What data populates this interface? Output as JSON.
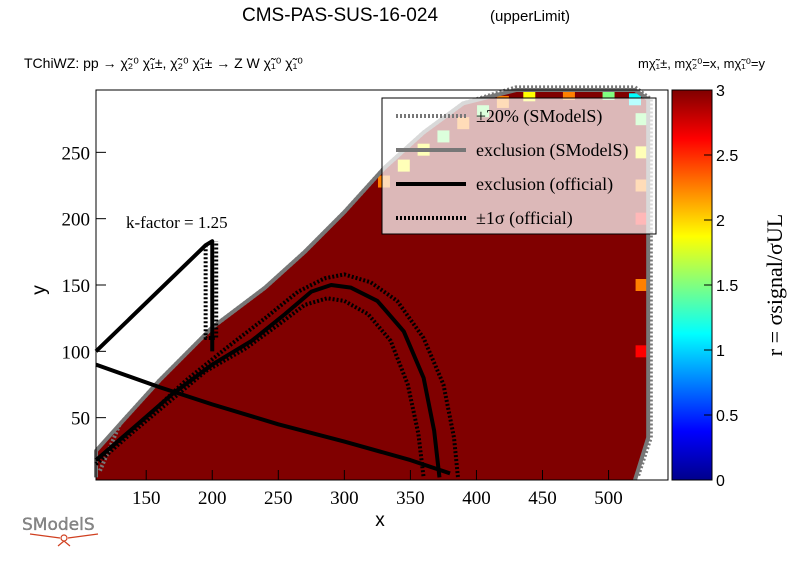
{
  "header": {
    "title": "CMS-PAS-SUS-16-024",
    "subtitle": "(upperLimit)",
    "process": "TChiWZ: pp  → χ̃₂⁰ χ̃₁±, χ̃₂⁰ χ̃₁± → Z W  χ̃₁⁰ χ̃₁⁰",
    "mass_note": "mχ̃₁±, mχ̃₂⁰=x, mχ̃₁⁰=y"
  },
  "annotation": "k-factor = 1.25",
  "logo_text": "SModelS",
  "colors": {
    "fill_dark_red": "#800000",
    "contour_smodels": "#777777",
    "contour_official": "#000000",
    "legend_bg": "#ffffff"
  },
  "chart_data": {
    "type": "heatmap",
    "title": "CMS-PAS-SUS-16-024",
    "xlabel": "x",
    "ylabel": "y",
    "zlabel": "r = σsignal/σUL",
    "xlim": [
      112,
      545
    ],
    "ylim": [
      3,
      297
    ],
    "zlim": [
      0,
      3
    ],
    "x_ticks": [
      150,
      200,
      250,
      300,
      350,
      400,
      450,
      500
    ],
    "y_ticks": [
      50,
      100,
      150,
      200,
      250
    ],
    "z_ticks": [
      0,
      0.5,
      1,
      1.5,
      2,
      2.5,
      3
    ],
    "colorscale": [
      "#00008b",
      "#0000ff",
      "#0080ff",
      "#00ffff",
      "#80ff80",
      "#ffff00",
      "#ff8000",
      "#ff0000",
      "#800000"
    ],
    "excluded_region": {
      "value": 3,
      "boundary": [
        [
          112,
          3
        ],
        [
          112,
          25
        ],
        [
          130,
          45
        ],
        [
          160,
          78
        ],
        [
          200,
          118
        ],
        [
          240,
          148
        ],
        [
          270,
          175
        ],
        [
          300,
          205
        ],
        [
          330,
          238
        ],
        [
          360,
          265
        ],
        [
          390,
          287
        ],
        [
          430,
          297
        ],
        [
          520,
          297
        ],
        [
          530,
          290
        ],
        [
          530,
          35
        ],
        [
          520,
          3
        ]
      ]
    },
    "edge_cells": [
      {
        "x": 330,
        "y": 228,
        "z": 2.3
      },
      {
        "x": 345,
        "y": 240,
        "z": 1.8
      },
      {
        "x": 360,
        "y": 252,
        "z": 2.0
      },
      {
        "x": 375,
        "y": 262,
        "z": 1.6
      },
      {
        "x": 390,
        "y": 272,
        "z": 2.2
      },
      {
        "x": 405,
        "y": 281,
        "z": 1.4
      },
      {
        "x": 420,
        "y": 288,
        "z": 2.4
      },
      {
        "x": 440,
        "y": 293,
        "z": 1.7
      },
      {
        "x": 470,
        "y": 294,
        "z": 2.1
      },
      {
        "x": 500,
        "y": 294,
        "z": 1.5
      },
      {
        "x": 520,
        "y": 290,
        "z": 1.2
      },
      {
        "x": 525,
        "y": 275,
        "z": 1.6
      },
      {
        "x": 525,
        "y": 250,
        "z": 2.0
      },
      {
        "x": 525,
        "y": 225,
        "z": 2.4
      },
      {
        "x": 525,
        "y": 200,
        "z": 2.6
      },
      {
        "x": 525,
        "y": 150,
        "z": 2.3
      },
      {
        "x": 525,
        "y": 100,
        "z": 2.5
      }
    ],
    "series": [
      {
        "name": "±20% (SModelS)",
        "style": "dotted-grey",
        "points": [
          [
            115,
            10
          ],
          [
            130,
            45
          ],
          [
            160,
            78
          ],
          [
            200,
            118
          ],
          [
            240,
            148
          ],
          [
            270,
            175
          ],
          [
            300,
            205
          ],
          [
            330,
            238
          ],
          [
            360,
            265
          ],
          [
            390,
            287
          ],
          [
            430,
            299
          ],
          [
            520,
            299
          ],
          [
            532,
            290
          ],
          [
            532,
            35
          ],
          [
            522,
            5
          ]
        ]
      },
      {
        "name": "exclusion (SModelS)",
        "style": "solid-grey",
        "points": [
          [
            112,
            5
          ],
          [
            112,
            25
          ],
          [
            130,
            45
          ],
          [
            160,
            78
          ],
          [
            200,
            118
          ],
          [
            240,
            148
          ],
          [
            270,
            175
          ],
          [
            300,
            205
          ],
          [
            330,
            238
          ],
          [
            360,
            265
          ],
          [
            390,
            287
          ],
          [
            430,
            297
          ],
          [
            520,
            297
          ],
          [
            530,
            290
          ],
          [
            530,
            35
          ],
          [
            520,
            3
          ]
        ]
      },
      {
        "name": "exclusion (official)",
        "style": "solid-black",
        "points": [
          [
            112,
            18
          ],
          [
            140,
            42
          ],
          [
            170,
            68
          ],
          [
            200,
            90
          ],
          [
            230,
            108
          ],
          [
            255,
            128
          ],
          [
            275,
            145
          ],
          [
            290,
            150
          ],
          [
            305,
            148
          ],
          [
            325,
            138
          ],
          [
            345,
            115
          ],
          [
            360,
            80
          ],
          [
            368,
            40
          ],
          [
            372,
            5
          ]
        ]
      },
      {
        "name": "±1σ (official)",
        "style": "dotted-black",
        "points": [
          [
            115,
            20
          ],
          [
            150,
            50
          ],
          [
            180,
            78
          ],
          [
            210,
            102
          ],
          [
            240,
            125
          ],
          [
            265,
            145
          ],
          [
            285,
            155
          ],
          [
            300,
            158
          ],
          [
            320,
            152
          ],
          [
            340,
            138
          ],
          [
            360,
            110
          ],
          [
            375,
            75
          ],
          [
            383,
            35
          ],
          [
            386,
            5
          ]
        ]
      },
      {
        "name": "",
        "style": "dotted-black",
        "points": [
          [
            112,
            15
          ],
          [
            135,
            35
          ],
          [
            165,
            60
          ],
          [
            195,
            85
          ],
          [
            225,
            102
          ],
          [
            250,
            120
          ],
          [
            270,
            135
          ],
          [
            287,
            140
          ],
          [
            300,
            138
          ],
          [
            318,
            128
          ],
          [
            335,
            108
          ],
          [
            348,
            75
          ],
          [
            356,
            38
          ],
          [
            360,
            5
          ]
        ]
      },
      {
        "name": "",
        "style": "solid-black",
        "points": [
          [
            112,
            100
          ],
          [
            195,
            180
          ],
          [
            200,
            183
          ],
          [
            200,
            100
          ]
        ]
      },
      {
        "name": "",
        "style": "dotted-black",
        "points": [
          [
            195,
            180
          ],
          [
            195,
            110
          ],
          [
            203,
            110
          ],
          [
            203,
            183
          ]
        ]
      },
      {
        "name": "",
        "style": "solid-black",
        "points": [
          [
            112,
            90
          ],
          [
            160,
            73
          ],
          [
            200,
            60
          ],
          [
            250,
            45
          ],
          [
            300,
            32
          ],
          [
            350,
            18
          ],
          [
            380,
            8
          ]
        ]
      }
    ]
  }
}
